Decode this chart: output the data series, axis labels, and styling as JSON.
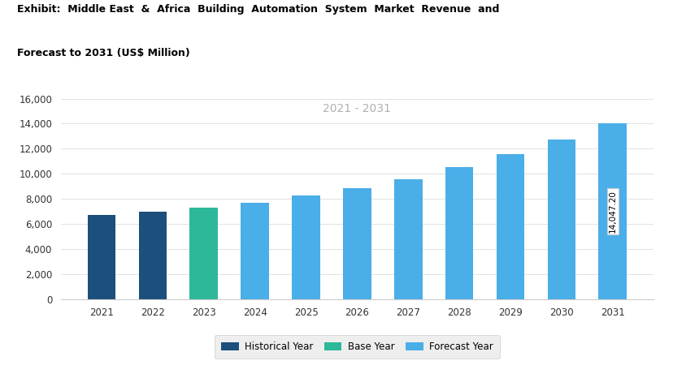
{
  "years": [
    2021,
    2022,
    2023,
    2024,
    2025,
    2026,
    2027,
    2028,
    2029,
    2030,
    2031
  ],
  "values": [
    6700,
    6950,
    7300,
    7700,
    8250,
    8850,
    9600,
    10550,
    11600,
    12750,
    14047.2
  ],
  "bar_types": [
    "historical",
    "historical",
    "base",
    "forecast",
    "forecast",
    "forecast",
    "forecast",
    "forecast",
    "forecast",
    "forecast",
    "forecast"
  ],
  "colors": {
    "historical": "#1c4f7c",
    "base": "#2db89a",
    "forecast": "#4aaee8"
  },
  "title_line1": "Exhibit:  Middle East  &  Africa  Building  Automation  System  Market  Revenue  and",
  "title_line2": "Forecast to 2031 (US$ Million)",
  "period_label": "2021 - 2031",
  "last_bar_label": "14,047.20",
  "ylim": [
    0,
    16000
  ],
  "yticks": [
    0,
    2000,
    4000,
    6000,
    8000,
    10000,
    12000,
    14000,
    16000
  ],
  "legend_labels": [
    "Historical Year",
    "Base Year",
    "Forecast Year"
  ],
  "legend_colors": [
    "#1c4f7c",
    "#2db89a",
    "#4aaee8"
  ],
  "background_color": "#ffffff",
  "plot_background": "#ffffff"
}
